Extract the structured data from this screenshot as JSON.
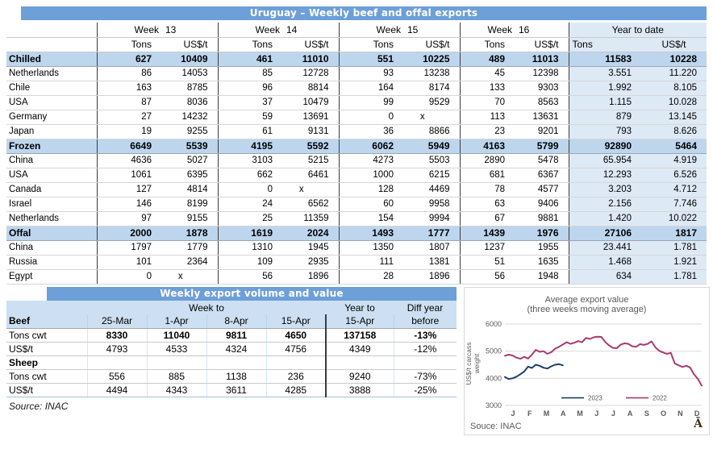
{
  "exports_table": {
    "title": "Uruguay – Weekly beef and offal exports",
    "week_label": "Week",
    "week_numbers": [
      "13",
      "14",
      "15",
      "16"
    ],
    "ytd_label": "Year to date",
    "unit_tons": "Tons",
    "unit_usd": "US$/t",
    "rows": [
      {
        "label": "Chilled",
        "type": "section",
        "values": [
          "627",
          "10409",
          "461",
          "11010",
          "551",
          "10225",
          "489",
          "11013",
          "11583",
          "10228"
        ]
      },
      {
        "label": "Netherlands",
        "type": "country",
        "values": [
          "86",
          "14053",
          "85",
          "12728",
          "93",
          "13238",
          "45",
          "12398",
          "3.551",
          "11.220"
        ]
      },
      {
        "label": "Chile",
        "type": "country",
        "values": [
          "163",
          "8785",
          "96",
          "8814",
          "164",
          "8174",
          "133",
          "9303",
          "1.992",
          "8.105"
        ]
      },
      {
        "label": "USA",
        "type": "country",
        "values": [
          "87",
          "8036",
          "37",
          "10479",
          "99",
          "9529",
          "70",
          "8563",
          "1.115",
          "10.028"
        ]
      },
      {
        "label": "Germany",
        "type": "country",
        "values": [
          "27",
          "14232",
          "59",
          "13691",
          "0",
          "x",
          "113",
          "13631",
          "879",
          "13.145"
        ]
      },
      {
        "label": "Japan",
        "type": "country",
        "values": [
          "19",
          "9255",
          "61",
          "9131",
          "36",
          "8866",
          "23",
          "9201",
          "793",
          "8.626"
        ]
      },
      {
        "label": "Frozen",
        "type": "section",
        "values": [
          "6649",
          "5539",
          "4195",
          "5592",
          "6062",
          "5949",
          "4163",
          "5799",
          "92890",
          "5464"
        ]
      },
      {
        "label": "China",
        "type": "country",
        "values": [
          "4636",
          "5027",
          "3103",
          "5215",
          "4273",
          "5503",
          "2890",
          "5478",
          "65.954",
          "4.919"
        ]
      },
      {
        "label": "USA",
        "type": "country",
        "values": [
          "1061",
          "6395",
          "662",
          "6461",
          "1000",
          "6215",
          "681",
          "6367",
          "12.293",
          "6.526"
        ]
      },
      {
        "label": "Canada",
        "type": "country",
        "values": [
          "127",
          "4814",
          "0",
          "x",
          "128",
          "4469",
          "78",
          "4577",
          "3.203",
          "4.712"
        ]
      },
      {
        "label": "Israel",
        "type": "country",
        "values": [
          "146",
          "8199",
          "24",
          "6562",
          "60",
          "9958",
          "63",
          "9406",
          "2.156",
          "7.746"
        ]
      },
      {
        "label": "Netherlands",
        "type": "country",
        "values": [
          "97",
          "9155",
          "25",
          "11359",
          "154",
          "9994",
          "67",
          "9881",
          "1.420",
          "10.022"
        ]
      },
      {
        "label": "Offal",
        "type": "section",
        "values": [
          "2000",
          "1878",
          "1619",
          "2024",
          "1493",
          "1777",
          "1439",
          "1976",
          "27106",
          "1817"
        ]
      },
      {
        "label": "China",
        "type": "country",
        "values": [
          "1797",
          "1779",
          "1310",
          "1945",
          "1350",
          "1807",
          "1237",
          "1955",
          "23.441",
          "1.781"
        ]
      },
      {
        "label": "Russia",
        "type": "country",
        "values": [
          "101",
          "2364",
          "109",
          "2935",
          "111",
          "1381",
          "51",
          "1635",
          "1.468",
          "1.921"
        ]
      },
      {
        "label": "Egypt",
        "type": "country",
        "values": [
          "0",
          "x",
          "56",
          "1896",
          "28",
          "1896",
          "56",
          "1948",
          "634",
          "1.781"
        ]
      }
    ]
  },
  "weekly_table": {
    "title": "Weekly export volume and value",
    "group_headers": {
      "week_to": "Week to",
      "year_to": "Year to",
      "diff_year": "Diff year"
    },
    "col_headers": [
      "Beef",
      "25-Mar",
      "1-Apr",
      "8-Apr",
      "15-Apr",
      "15-Apr",
      "before"
    ],
    "rows": [
      {
        "label": "Tons cwt",
        "bold_label": false,
        "bold_values": true,
        "values": [
          "8330",
          "11040",
          "9811",
          "4650",
          "137158",
          "-13%"
        ]
      },
      {
        "label": "US$/t",
        "bold_label": false,
        "bold_values": false,
        "values": [
          "4793",
          "4533",
          "4324",
          "4756",
          "4349",
          "-12%"
        ]
      },
      {
        "label": "Sheep",
        "bold_label": true,
        "bold_values": false,
        "values": [
          "",
          "",
          "",
          "",
          "",
          ""
        ]
      },
      {
        "label": "Tons cwt",
        "bold_label": false,
        "bold_values": false,
        "values": [
          "556",
          "885",
          "1138",
          "236",
          "9240",
          "-73%"
        ]
      },
      {
        "label": "US$/t",
        "bold_label": false,
        "bold_values": false,
        "values": [
          "4494",
          "4343",
          "3611",
          "4285",
          "3888",
          "-25%"
        ]
      }
    ],
    "source": "Source: INAC"
  },
  "chart_data": {
    "type": "line",
    "title": "Average export value",
    "subtitle": "(three weeks moving average)",
    "ylabel": "US$/t carcass weight",
    "ylim": [
      3000,
      6000
    ],
    "yticks": [
      6000,
      5000,
      4000,
      3000
    ],
    "xticks": [
      "J",
      "F",
      "M",
      "A",
      "M",
      "J",
      "J",
      "A",
      "S",
      "O",
      "N",
      "D"
    ],
    "x_unit": "week-of-year",
    "weeks_per_year": 52,
    "grid": "horizontal",
    "legend_position": "bottom-center",
    "source": "Souce: INAC",
    "corner_glyph": "Ā",
    "series": [
      {
        "name": "2023",
        "color": "#1F3E67",
        "values": [
          4050,
          3975,
          4000,
          4060,
          4150,
          4250,
          4430,
          4380,
          4500,
          4460,
          4390,
          4360,
          4440,
          4500,
          4520,
          4480
        ]
      },
      {
        "name": "2022",
        "color": "#A73B6E",
        "values": [
          4830,
          4870,
          4840,
          4760,
          4720,
          4790,
          4730,
          4870,
          5050,
          4975,
          5000,
          4905,
          4960,
          5090,
          5160,
          5245,
          5330,
          5270,
          5310,
          5370,
          5330,
          5490,
          5450,
          5510,
          5530,
          5525,
          5340,
          5210,
          5120,
          5110,
          5240,
          5290,
          5270,
          5180,
          5160,
          5260,
          5230,
          5270,
          5360,
          5140,
          5010,
          4950,
          4900,
          4940,
          4550,
          4480,
          4420,
          4460,
          4400,
          4150,
          3980,
          3730
        ]
      }
    ]
  },
  "colors": {
    "title_bar": "#6D9FD8",
    "section_row": "#BDD6EE",
    "ytd_column": "#DEE9F6",
    "table2_header": "#CDDFF2",
    "series_2023": "#1F3E67",
    "series_2022": "#A73B6E"
  }
}
